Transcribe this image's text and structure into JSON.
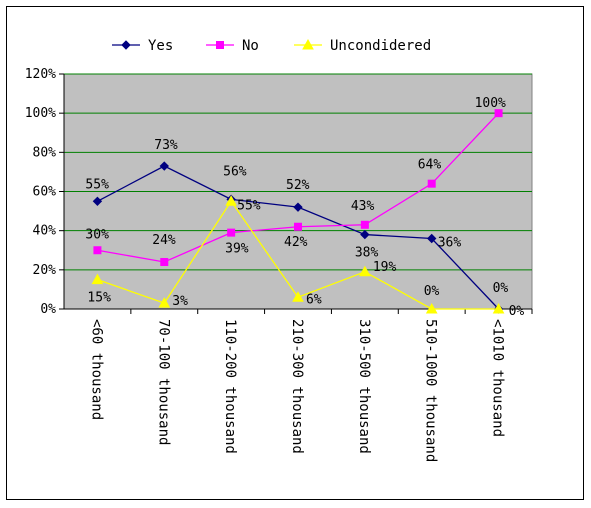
{
  "chart_data": {
    "type": "line",
    "title": "",
    "xlabel": "",
    "ylabel": "",
    "categories": [
      "<60 thousand",
      "70-100 thousand",
      "110-200 thousand",
      "210-300 thousand",
      "310-500 thousand",
      "510-1000 thousand",
      "<1010 thousand"
    ],
    "ylim": [
      0,
      120
    ],
    "y_ticks": [
      "0%",
      "20%",
      "40%",
      "60%",
      "80%",
      "100%",
      "120%"
    ],
    "grid": true,
    "plot_background": "#c0c0c0",
    "gridline_color": "#008000",
    "legend_position": "top",
    "series": [
      {
        "name": "Yes",
        "color": "#000080",
        "marker": "diamond",
        "values": [
          55,
          73,
          56,
          52,
          38,
          36,
          0
        ],
        "labels": [
          "55%",
          "73%",
          "56%",
          "52%",
          "38%",
          "36%",
          "0%"
        ]
      },
      {
        "name": "No",
        "color": "#ff00ff",
        "marker": "square",
        "values": [
          30,
          24,
          39,
          42,
          43,
          64,
          100
        ],
        "labels": [
          "30%",
          "24%",
          "39%",
          "42%",
          "43%",
          "64%",
          "100%"
        ]
      },
      {
        "name": "Uncondidered",
        "color": "#ffff00",
        "marker": "triangle",
        "values": [
          15,
          3,
          55,
          6,
          19,
          0,
          0
        ],
        "labels": [
          "15%",
          "3%",
          "55%",
          "6%",
          "19%",
          "0%",
          "0%"
        ]
      }
    ]
  }
}
